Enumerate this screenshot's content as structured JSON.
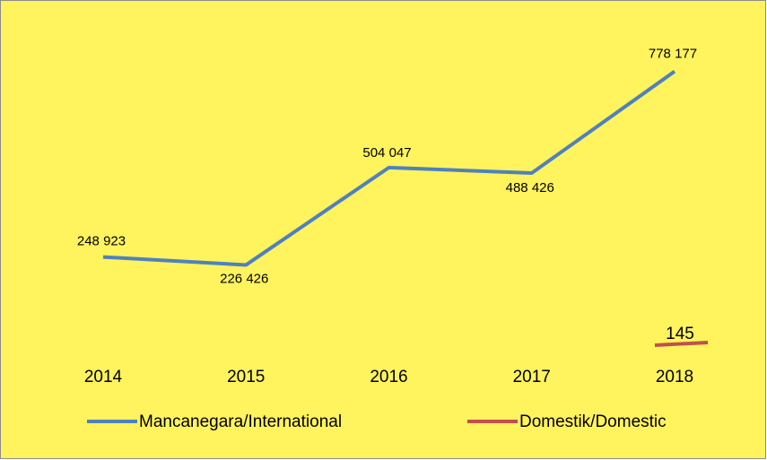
{
  "chart_data": {
    "type": "line",
    "categories": [
      "2014",
      "2015",
      "2016",
      "2017",
      "2018"
    ],
    "series": [
      {
        "name": "Mancanegara/International",
        "color": "#4f81bd",
        "values": [
          248923,
          226426,
          504047,
          488426,
          778177
        ],
        "value_labels": [
          "248 923",
          "226 426",
          "504 047",
          "488 426",
          "778 177"
        ]
      },
      {
        "name": "Domestik/Domestic",
        "color": "#c0504d",
        "values": [
          null,
          null,
          null,
          null,
          145
        ],
        "value_labels": [
          null,
          null,
          null,
          null,
          "145"
        ]
      }
    ],
    "ylim": [
      0,
      900000
    ],
    "background": "#fff35e",
    "legend": "bottom"
  }
}
